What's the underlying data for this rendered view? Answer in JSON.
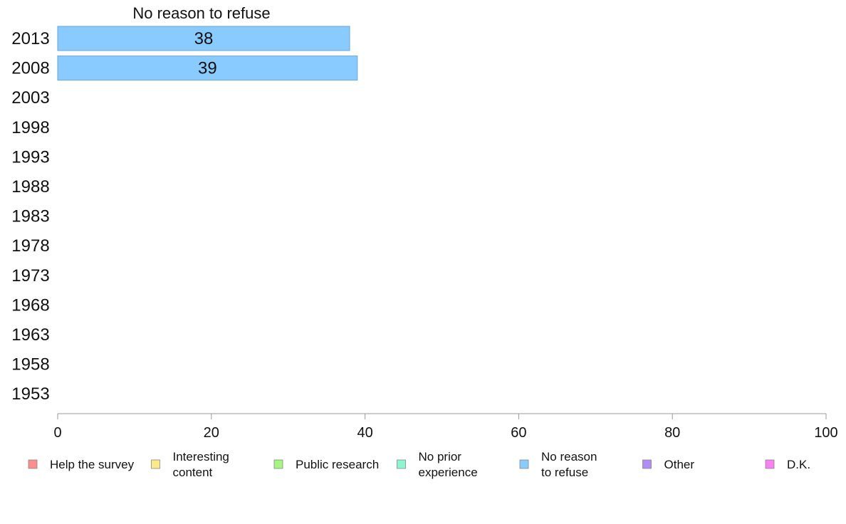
{
  "chart_data": {
    "type": "bar",
    "orientation": "horizontal",
    "title": "No reason to refuse",
    "categories": [
      "2013",
      "2008",
      "2003",
      "1998",
      "1993",
      "1988",
      "1983",
      "1978",
      "1973",
      "1968",
      "1963",
      "1958",
      "1953"
    ],
    "series": [
      {
        "name": "No reason to refuse",
        "color": "#89cbff",
        "values": [
          38,
          39,
          null,
          null,
          null,
          null,
          null,
          null,
          null,
          null,
          null,
          null,
          null
        ],
        "labels": [
          "38",
          "39",
          "",
          "",
          "",
          "",
          "",
          "",
          "",
          "",
          "",
          "",
          ""
        ]
      }
    ],
    "xlim": [
      0,
      100
    ],
    "xticks": [
      "0",
      "20",
      "40",
      "60",
      "80",
      "100"
    ],
    "grid": false,
    "legend": {
      "placement": "bottom",
      "items": [
        {
          "lines": [
            "Help the survey"
          ],
          "color": "#fb8e8e"
        },
        {
          "lines": [
            "Interesting",
            "content"
          ],
          "color": "#fce98a"
        },
        {
          "lines": [
            "Public research"
          ],
          "color": "#a4f582"
        },
        {
          "lines": [
            "No prior",
            "experience"
          ],
          "color": "#8cf7ce"
        },
        {
          "lines": [
            "No reason",
            "to refuse"
          ],
          "color": "#89cbff"
        },
        {
          "lines": [
            "Other"
          ],
          "color": "#b18cf7"
        },
        {
          "lines": [
            "D.K."
          ],
          "color": "#f781f0"
        }
      ]
    }
  }
}
